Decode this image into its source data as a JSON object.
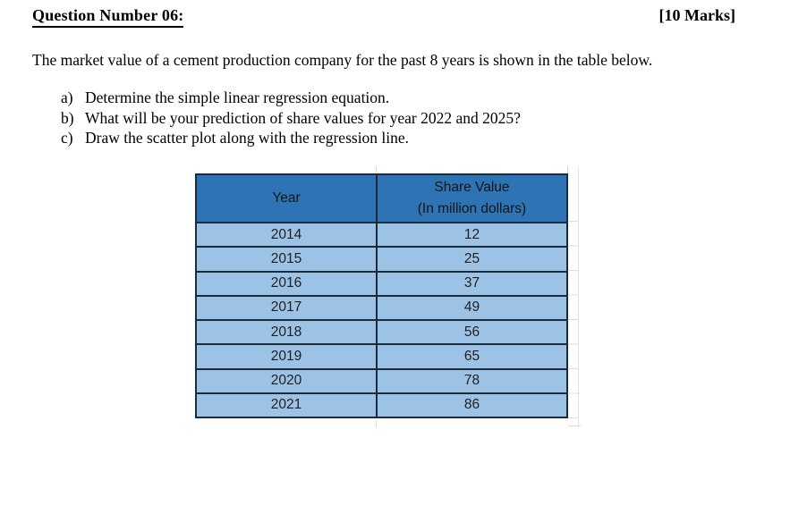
{
  "document": {
    "title": "Question Number 06:",
    "marks": "[10 Marks]",
    "intro": "The market value of a cement production company for the past 8 years is shown in the table below.",
    "questions": [
      {
        "label": "a)",
        "text": "Determine the simple linear regression equation."
      },
      {
        "label": "b)",
        "text": "What will be your prediction of share values for year 2022 and 2025?"
      },
      {
        "label": "c)",
        "text": "Draw the scatter plot along with the regression line."
      }
    ]
  },
  "table": {
    "header": {
      "year": "Year",
      "share_value_title": "Share Value",
      "share_value_subtitle": "(In million dollars)"
    },
    "rows": [
      {
        "year": "2014",
        "value": "12"
      },
      {
        "year": "2015",
        "value": "25"
      },
      {
        "year": "2016",
        "value": "37"
      },
      {
        "year": "2017",
        "value": "49"
      },
      {
        "year": "2018",
        "value": "56"
      },
      {
        "year": "2019",
        "value": "65"
      },
      {
        "year": "2020",
        "value": "78"
      },
      {
        "year": "2021",
        "value": "86"
      }
    ],
    "colors": {
      "header_bg": "#2e74b5",
      "row_bg": "#9cc2e5",
      "border": "#1c2b3a",
      "text": "#1f1f1f"
    }
  }
}
